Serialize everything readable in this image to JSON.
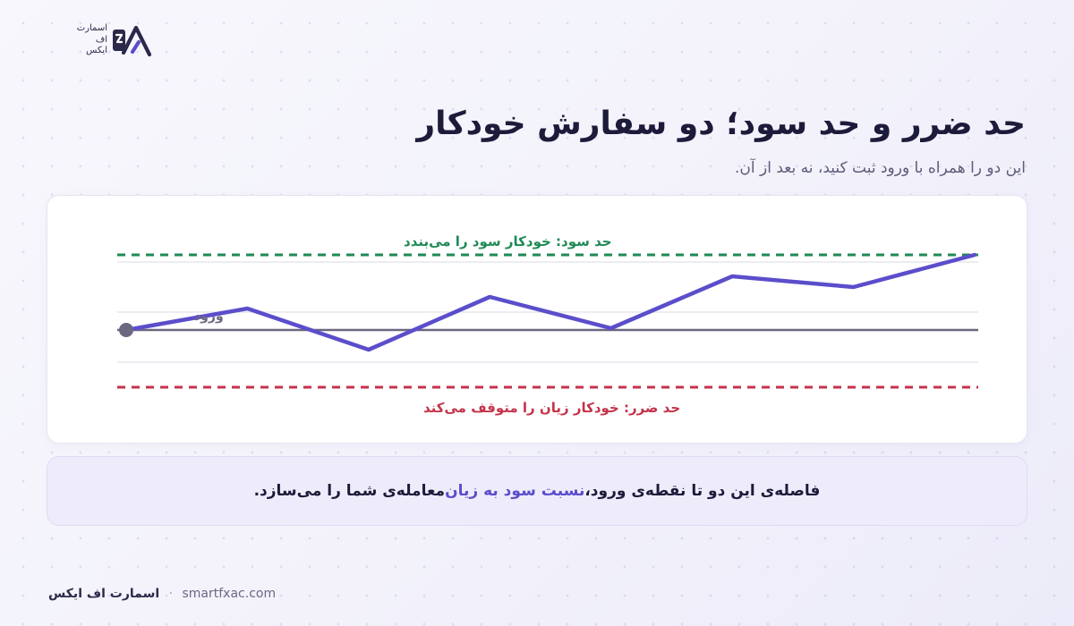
{
  "brand": {
    "logo_lines": [
      "اسمارت",
      "اف",
      "ایکس"
    ],
    "footer_brand": "اسمارت اف ایکس",
    "separator": "·",
    "website": "smartfxac.com"
  },
  "header": {
    "title": "حد ضرر و حد سود؛ دو سفارش خودکار",
    "subtitle": "این دو را همراه با ورود ثبت کنید، نه بعد از آن."
  },
  "chart_data": {
    "type": "line",
    "take_profit_label": "حد سود: خودکار سود را می‌بندد",
    "stop_loss_label": "حد ضرر: خودکار زیان را متوقف می‌کند",
    "entry_label": "ورود",
    "levels": {
      "take_profit": 84,
      "entry": 0,
      "stop_loss": -64
    },
    "grid_levels": [
      76,
      20,
      -36
    ],
    "price_path": [
      0,
      24,
      -22,
      37,
      2,
      60,
      48,
      84
    ],
    "colors": {
      "price": "#5b4ecb",
      "take_profit": "#1f8a55",
      "stop_loss": "#c4334a",
      "entry": "#6b6780",
      "grid": "#e7e6ee"
    }
  },
  "note": {
    "before": "فاصله‌ی این دو تا نقطه‌ی ورود، ",
    "highlight": "نسبت سود به زیان",
    "after": " معامله‌ی شما را می‌سازد."
  }
}
